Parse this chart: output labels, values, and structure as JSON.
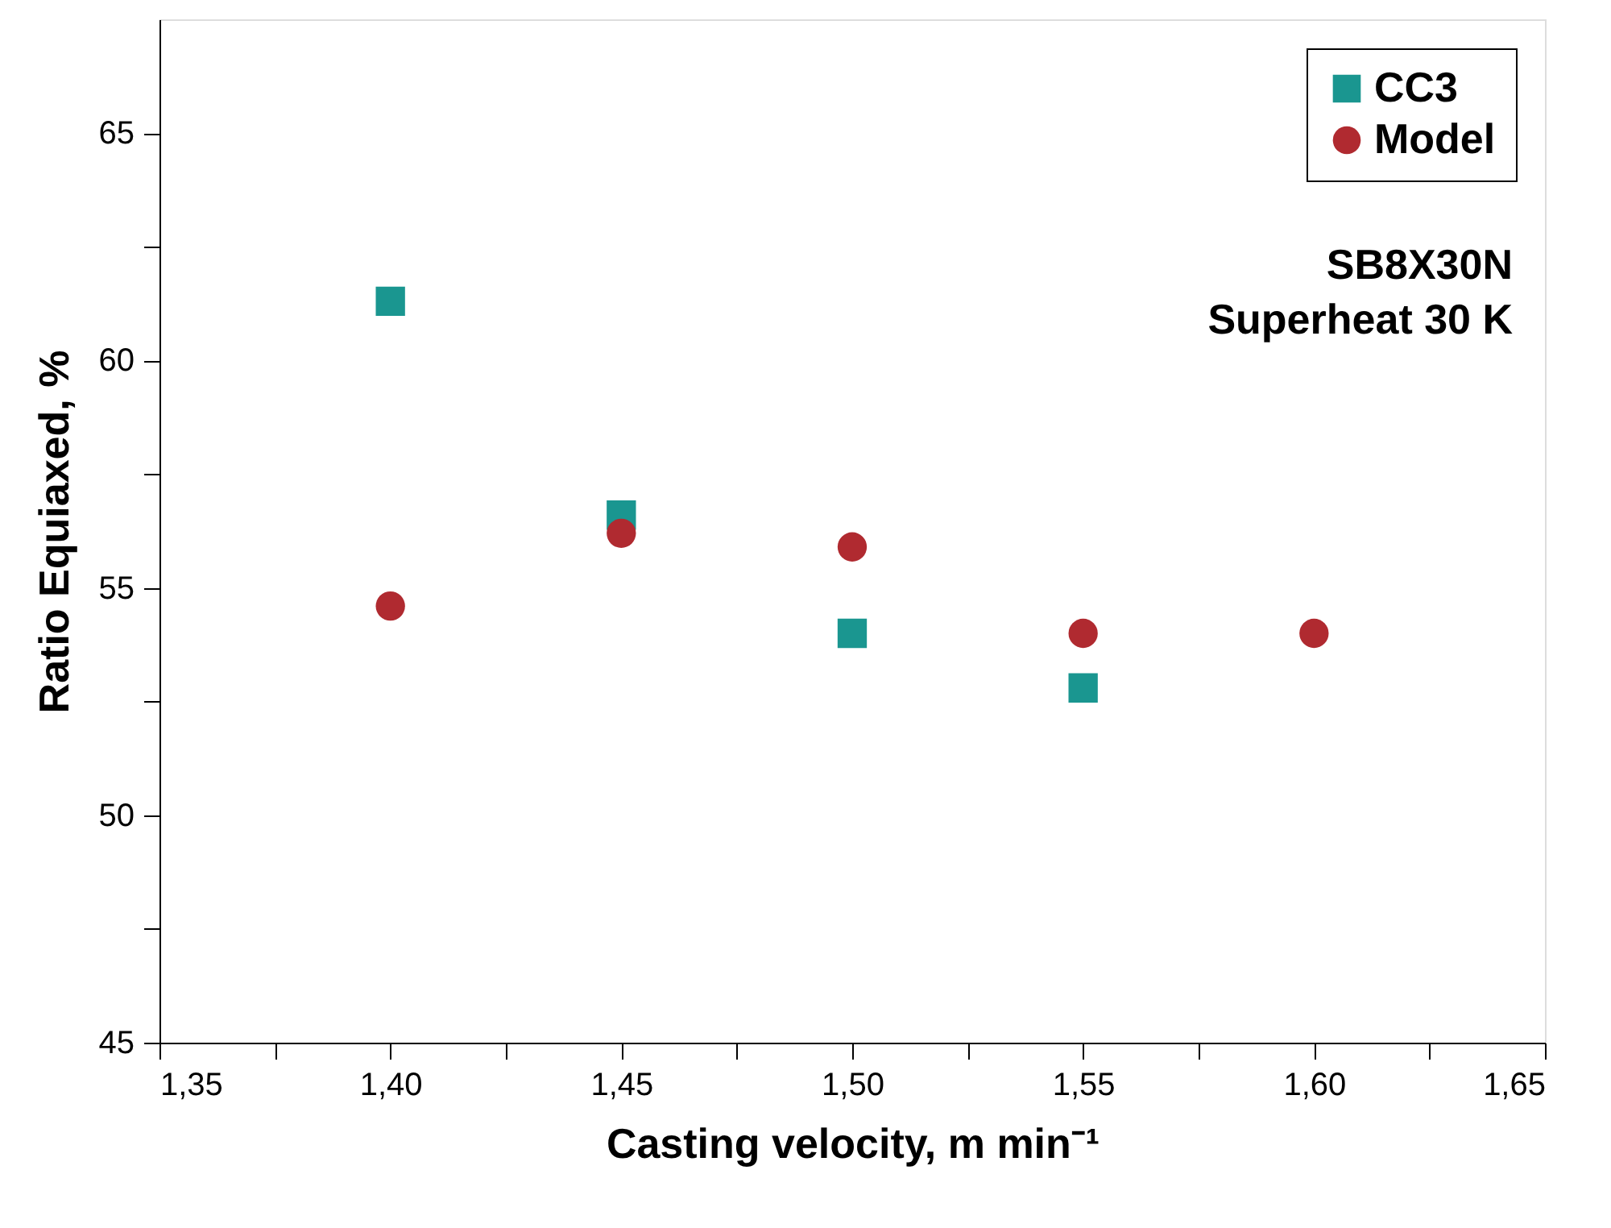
{
  "chart_data": {
    "type": "scatter",
    "xlabel": "Casting velocity, m min⁻¹",
    "ylabel": "Ratio Equiaxed, %",
    "annotations": [
      "SB8X30N\nSuperheat 30 K"
    ],
    "xlim": [
      1.35,
      1.65
    ],
    "xticks": [
      {
        "value": 1.35,
        "label": "1,35"
      },
      {
        "value": 1.375,
        "label": null
      },
      {
        "value": 1.4,
        "label": "1,40"
      },
      {
        "value": 1.425,
        "label": null
      },
      {
        "value": 1.45,
        "label": "1,45"
      },
      {
        "value": 1.475,
        "label": null
      },
      {
        "value": 1.5,
        "label": "1,50"
      },
      {
        "value": 1.525,
        "label": null
      },
      {
        "value": 1.55,
        "label": "1,55"
      },
      {
        "value": 1.575,
        "label": null
      },
      {
        "value": 1.6,
        "label": "1,60"
      },
      {
        "value": 1.625,
        "label": null
      },
      {
        "value": 1.65,
        "label": "1,65"
      }
    ],
    "ylim": [
      45,
      67.5
    ],
    "yticks": [
      45,
      {
        "value": 47.5,
        "label": null
      },
      50,
      {
        "value": 52.5,
        "label": null
      },
      55,
      {
        "value": 57.5,
        "label": null
      },
      60,
      {
        "value": 62.5,
        "label": null
      },
      65
    ],
    "grid": false,
    "legend": "top right",
    "series": [
      {
        "name": "CC3",
        "color": "#1a9690",
        "marker": "square",
        "x": [
          1.4,
          1.45,
          1.5,
          1.55
        ],
        "values": [
          61.3,
          56.6,
          54.0,
          52.8
        ]
      },
      {
        "name": "Model",
        "color": "#b02a30",
        "marker": "circle",
        "x": [
          1.4,
          1.45,
          1.5,
          1.55,
          1.6
        ],
        "values": [
          54.6,
          56.2,
          55.9,
          54.0,
          54.0
        ]
      }
    ]
  }
}
